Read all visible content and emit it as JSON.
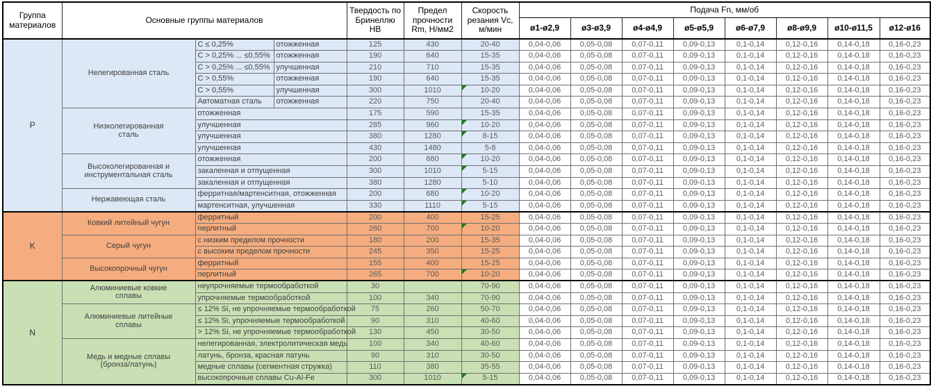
{
  "colors": {
    "group_p_bg": "#dce8f5",
    "group_k_bg": "#f5ad7f",
    "group_n_bg": "#c9e0b4",
    "feed_bg": "#ffffff",
    "marker_green": "#1e7b1e",
    "number_text": "#595959",
    "border_dark": "#000000"
  },
  "table": {
    "headers": {
      "group": "Группа материалов",
      "main_groups": "Основные группы материалов",
      "hardness": "Твердость по Бринеллю HB",
      "strength": "Предел прочности Rm, Н/мм2",
      "speed": "Скорость резания Vc, м/мин",
      "feed": "Подача Fn, мм/об",
      "feed_cols": [
        "ø1-ø2,9",
        "ø3-ø3,9",
        "ø4-ø4,9",
        "ø5-ø5,9",
        "ø6-ø7,9",
        "ø8-ø9,9",
        "ø10-ø11,5",
        "ø12-ø16"
      ]
    },
    "feed_values": [
      "0,04-0,06",
      "0,05-0,08",
      "0,07-0,11",
      "0,09-0,13",
      "0,1-0,14",
      "0,12-0,16",
      "0,14-0,18",
      "0,16-0,23"
    ],
    "groups": [
      {
        "code": "P",
        "color": "#dce8f5",
        "subgroups": [
          {
            "name": "Нелегированная сталь",
            "rows": [
              {
                "d1": "C ≤ 0,25%",
                "d2": "отожженная",
                "hb": "125",
                "rm": "430",
                "vc": "20-40",
                "tri": false
              },
              {
                "d1": "C > 0,25% ... ≤0,55%",
                "d2": "отожженная",
                "hb": "190",
                "rm": "640",
                "vc": "15-35",
                "tri": false
              },
              {
                "d1": "C > 0,25% ... ≤0,55%",
                "d2": "улучшенная",
                "hb": "210",
                "rm": "710",
                "vc": "15-35",
                "tri": false
              },
              {
                "d1": "C > 0,55%",
                "d2": "отожженная",
                "hb": "190",
                "rm": "640",
                "vc": "15-35",
                "tri": false
              },
              {
                "d1": "C > 0,55%",
                "d2": "улучшенная",
                "hb": "300",
                "rm": "1010",
                "vc": "10-20",
                "tri": true
              },
              {
                "d1": "Автоматная сталь",
                "d2": "отожженная",
                "hb": "220",
                "rm": "750",
                "vc": "20-40",
                "tri": false
              }
            ]
          },
          {
            "name": "Низколегированная\nсталь",
            "rows": [
              {
                "d": "отожженная",
                "hb": "175",
                "rm": "590",
                "vc": "15-35",
                "tri": false
              },
              {
                "d": "улучшенная",
                "hb": "285",
                "rm": "960",
                "vc": "10-20",
                "tri": true
              },
              {
                "d": "улучшенная",
                "hb": "380",
                "rm": "1280",
                "vc": "8-15",
                "tri": true
              },
              {
                "d": "улучшенная",
                "hb": "430",
                "rm": "1480",
                "vc": "5-8",
                "tri": false
              }
            ]
          },
          {
            "name": "Высоколегированная и\nинструментальная сталь",
            "rows": [
              {
                "d": "отожженная",
                "hb": "200",
                "rm": "680",
                "vc": "10-20",
                "tri": true
              },
              {
                "d": "закаленная и отпущенная",
                "hb": "300",
                "rm": "1010",
                "vc": "5-15",
                "tri": true
              },
              {
                "d": "закаленная и отпущенная",
                "hb": "380",
                "rm": "1280",
                "vc": "5-10",
                "tri": false
              }
            ]
          },
          {
            "name": "Нержавеющая сталь",
            "rows": [
              {
                "d": "ферритная/мартенситная, отожженная",
                "hb": "200",
                "rm": "680",
                "vc": "10-20",
                "tri": true
              },
              {
                "d": "мартенситная, улучшенная",
                "hb": "330",
                "rm": "1110",
                "vc": "5-15",
                "tri": true
              }
            ]
          }
        ]
      },
      {
        "code": "K",
        "color": "#f5ad7f",
        "subgroups": [
          {
            "name": "Ковкий литейный чугун",
            "rows": [
              {
                "d": "ферритный",
                "hb": "200",
                "rm": "400",
                "vc": "15-25",
                "tri": false
              },
              {
                "d": "перлитный",
                "hb": "260",
                "rm": "700",
                "vc": "10-20",
                "tri": true
              }
            ]
          },
          {
            "name": "Серый чугун",
            "rows": [
              {
                "d": "с низким пределом прочности",
                "hb": "180",
                "rm": "200",
                "vc": "15-35",
                "tri": false
              },
              {
                "d": "с высоким пределом прочности",
                "hb": "245",
                "rm": "350",
                "vc": "15-25",
                "tri": false
              }
            ]
          },
          {
            "name": "Высокопрочный чугун",
            "rows": [
              {
                "d": "ферритный",
                "hb": "155",
                "rm": "400",
                "vc": "15-25",
                "tri": false
              },
              {
                "d": "перлитный",
                "hb": "265",
                "rm": "700",
                "vc": "10-20",
                "tri": true
              }
            ]
          }
        ]
      },
      {
        "code": "N",
        "color": "#c9e0b4",
        "subgroups": [
          {
            "name": "Алюминиевые ковкие\nсплавы",
            "rows": [
              {
                "d": "неупрочняемые термообработкой",
                "hb": "30",
                "rm": "",
                "vc": "70-90",
                "tri": false
              },
              {
                "d": "упрочняемые термообработкой",
                "hb": "100",
                "rm": "340",
                "vc": "70-90",
                "tri": false
              }
            ]
          },
          {
            "name": "Алюминиевые литейные\nсплавы",
            "rows": [
              {
                "d": "≤ 12% Si, не упрочняемые термообработкой",
                "hb": "75",
                "rm": "260",
                "vc": "50-70",
                "tri": false
              },
              {
                "d": "≤ 12% Si, упрочняемые термообработкой",
                "hb": "90",
                "rm": "310",
                "vc": "40-60",
                "tri": false
              },
              {
                "d": "> 12% Si, не упрочняемые термообработкой",
                "hb": "130",
                "rm": "450",
                "vc": "30-50",
                "tri": false
              }
            ]
          },
          {
            "name": "Медь и медные сплавы\n(бронза/латунь)",
            "rows": [
              {
                "d": "нелегированная, электролитическая медь",
                "hb": "100",
                "rm": "340",
                "vc": "40-60",
                "tri": false
              },
              {
                "d": "латунь, бронза, красная латунь",
                "hb": "90",
                "rm": "310",
                "vc": "30-50",
                "tri": false
              },
              {
                "d": "медные сплавы (сегментная стружка)",
                "hb": "110",
                "rm": "380",
                "vc": "35-55",
                "tri": false
              },
              {
                "d": "высокопрочные сплавы Cu-Al-Fe",
                "hb": "300",
                "rm": "1010",
                "vc": "5-15",
                "tri": true
              }
            ]
          }
        ]
      }
    ]
  }
}
